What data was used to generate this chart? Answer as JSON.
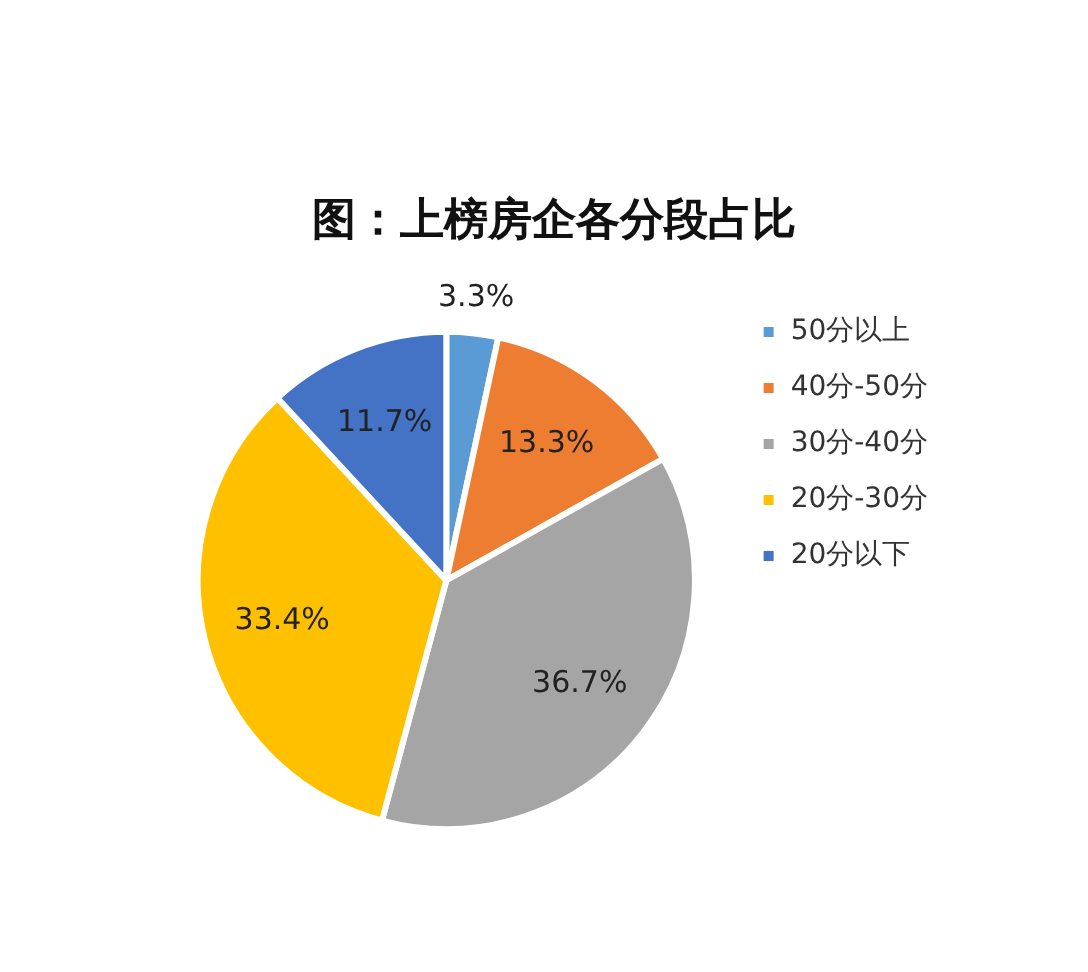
{
  "chart_data": {
    "type": "pie",
    "title": "图：上榜房企各分段占比",
    "categories": [
      "50分以上",
      "40分-50分",
      "30分-40分",
      "20分-30分",
      "20分以下"
    ],
    "values": [
      3.3,
      13.3,
      36.7,
      33.4,
      11.7
    ],
    "colors": [
      "#5b9bd5",
      "#ed7d31",
      "#a5a5a5",
      "#ffc000",
      "#4472c4"
    ],
    "value_labels": [
      "3.3%",
      "13.3%",
      "36.7%",
      "33.4%",
      "11.7%"
    ],
    "legend": "right"
  }
}
